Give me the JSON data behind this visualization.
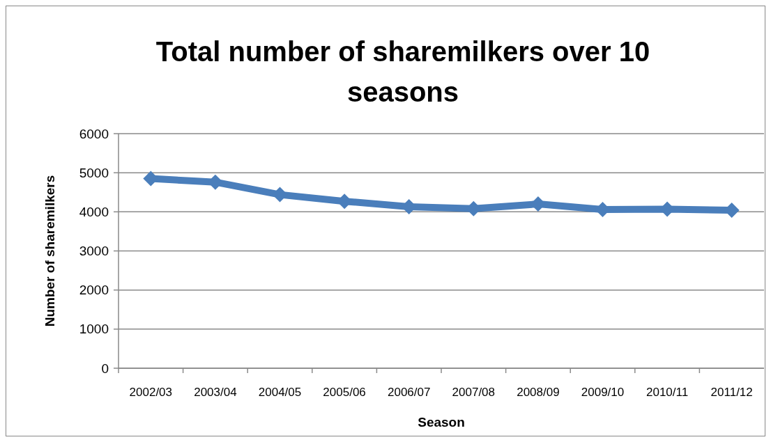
{
  "chart_data": {
    "type": "line",
    "title": "Total number of sharemilkers over 10 seasons",
    "xlabel": "Season",
    "ylabel": "Number of sharemilkers",
    "categories": [
      "2002/03",
      "2003/04",
      "2004/05",
      "2005/06",
      "2006/07",
      "2007/08",
      "2008/09",
      "2009/10",
      "2010/11",
      "2011/12"
    ],
    "series": [
      {
        "color": "#4a7ebb",
        "values": [
          4850,
          4760,
          4440,
          4270,
          4130,
          4080,
          4200,
          4060,
          4070,
          4040
        ]
      }
    ],
    "ylim": [
      0,
      6000
    ],
    "yticks": [
      0,
      1000,
      2000,
      3000,
      4000,
      5000,
      6000
    ],
    "grid": "y",
    "marker": "diamond",
    "line_style": "solid"
  }
}
